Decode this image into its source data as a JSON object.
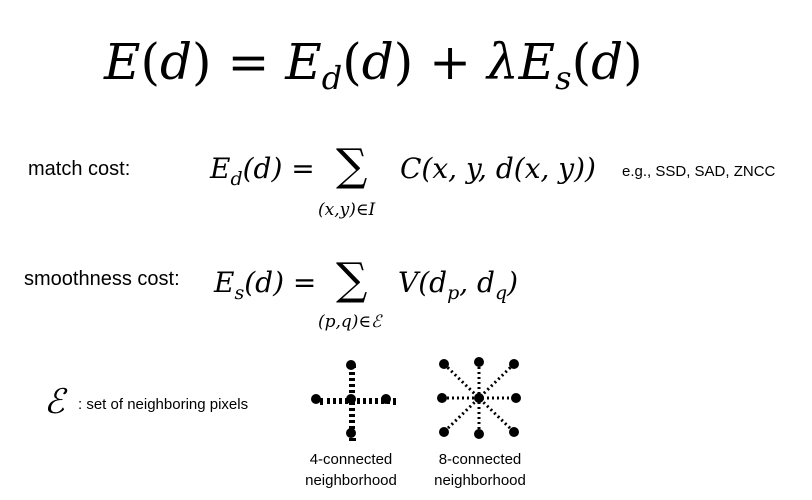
{
  "main_equation": {
    "E": "E",
    "lparen": "(",
    "d": "d",
    "rparen": ")",
    "equals": " = ",
    "data_term_sub": "d",
    "plus": " + ",
    "lambda": "λ",
    "smooth_term_sub": "s"
  },
  "match_cost": {
    "label": "match cost:",
    "lhs_E": "E",
    "lhs_sub": "d",
    "lhs_arg": "(d) =",
    "sigma": "∑",
    "limit": "(x,y)∈I",
    "rhs": "C(x, y, d(x, y))",
    "note": "e.g., SSD, SAD, ZNCC"
  },
  "smoothness_cost": {
    "label": "smoothness cost:",
    "lhs_E": "E",
    "lhs_sub": "s",
    "lhs_arg": "(d) =",
    "sigma": "∑",
    "limit": "(p,q)∈ℰ",
    "rhs_V": "V(d",
    "rhs_p": "p",
    "rhs_comma": ", d",
    "rhs_q": "q",
    "rhs_close": ")"
  },
  "neighbors": {
    "symbol": "ℰ",
    "description": ": set of neighboring pixels",
    "four_connected_line1": "4-connected",
    "four_connected_line2": "neighborhood",
    "eight_connected_line1": "8-connected",
    "eight_connected_line2": "neighborhood"
  }
}
